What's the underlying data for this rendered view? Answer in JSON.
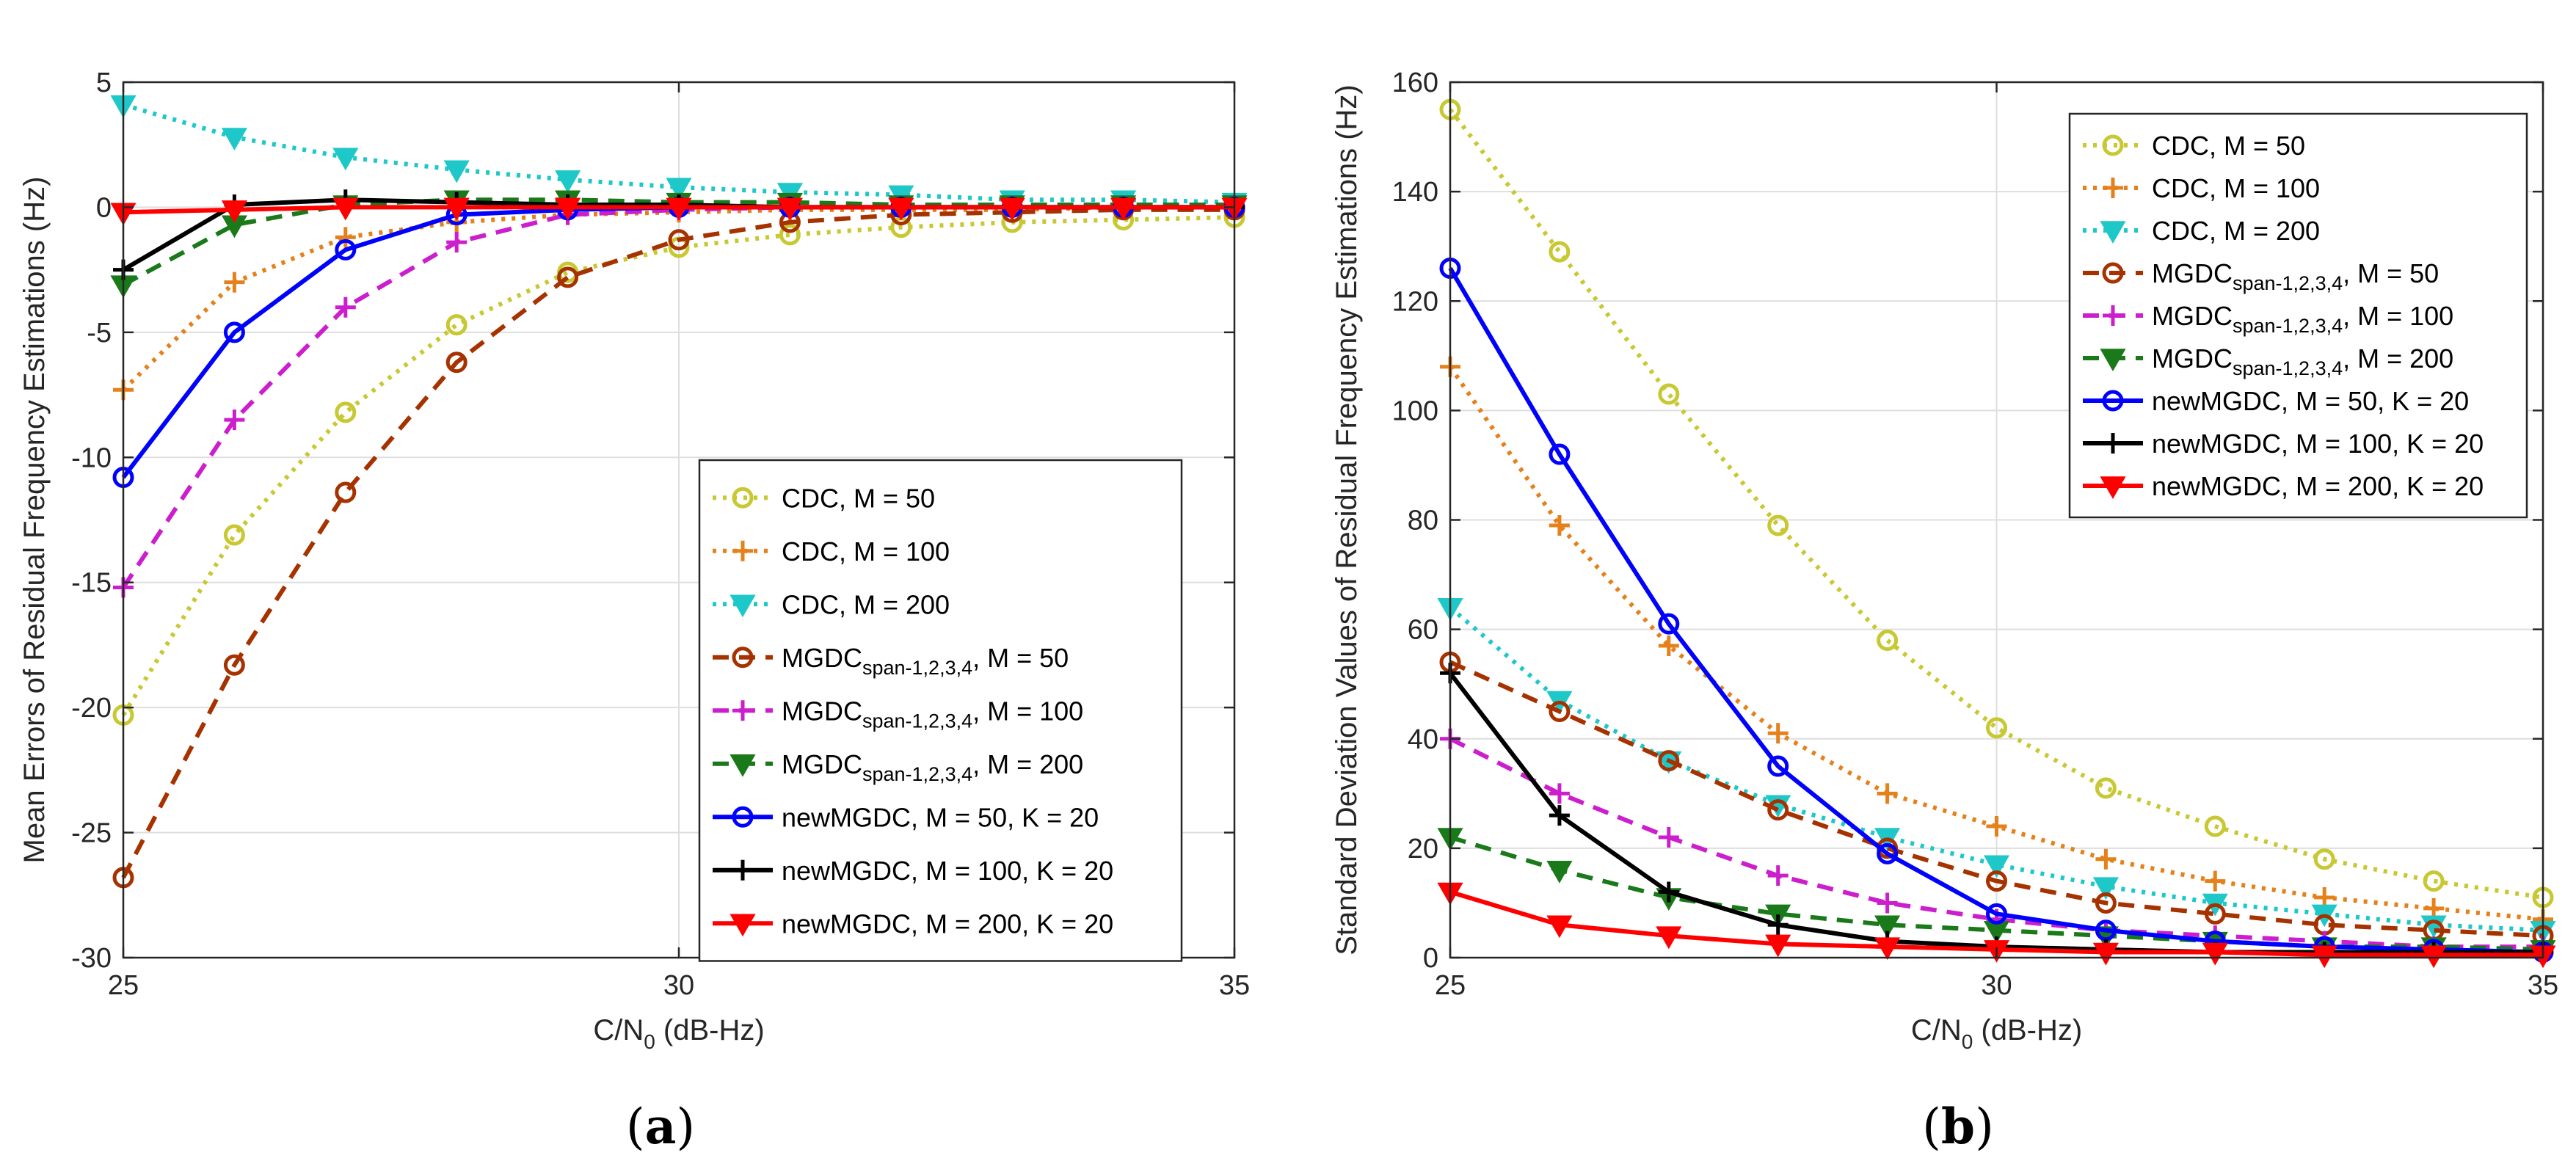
{
  "chart_data": [
    {
      "type": "line",
      "panel_label": "(a)",
      "panel_letter": "a",
      "xlabel": "C/N",
      "xlabel_sub": "0",
      "xlabel_unit": " (dB-Hz)",
      "ylabel": "Mean Errors of Residual Frequency Estimations (Hz)",
      "xlim": [
        25,
        35
      ],
      "ylim": [
        -30,
        5
      ],
      "xticks": [
        25,
        30,
        35
      ],
      "yticks": [
        -30,
        -25,
        -20,
        -15,
        -10,
        -5,
        0,
        5
      ],
      "grid": true,
      "legend_position": "lower-right",
      "x": [
        25,
        26,
        27,
        28,
        29,
        30,
        31,
        32,
        33,
        34,
        35
      ],
      "series": [
        {
          "name": "CDC, M = 50",
          "label_main": "CDC, M = 50",
          "color": "#c8c832",
          "dash": "dot",
          "marker": "circle",
          "values": [
            -20.3,
            -13.1,
            -8.2,
            -4.7,
            -2.6,
            -1.6,
            -1.1,
            -0.8,
            -0.6,
            -0.5,
            -0.4
          ]
        },
        {
          "name": "CDC, M = 100",
          "label_main": "CDC, M = 100",
          "color": "#e5801a",
          "dash": "dot",
          "marker": "plus",
          "values": [
            -7.3,
            -3.0,
            -1.2,
            -0.6,
            -0.3,
            -0.2,
            -0.1,
            -0.1,
            -0.1,
            0.0,
            0.0
          ]
        },
        {
          "name": "CDC, M = 200",
          "label_main": "CDC, M = 200",
          "color": "#1ec8c8",
          "dash": "dot",
          "marker": "triangle-down",
          "values": [
            4.1,
            2.8,
            2.0,
            1.5,
            1.1,
            0.8,
            0.6,
            0.5,
            0.3,
            0.3,
            0.2
          ]
        },
        {
          "name": "MGDC span-1,2,3,4, M = 50",
          "label_main": "MGDC",
          "label_sub": "span-1,2,3,4",
          "label_tail": ", M = 50",
          "color": "#a63200",
          "dash": "dash",
          "marker": "circle",
          "values": [
            -26.8,
            -18.3,
            -11.4,
            -6.2,
            -2.8,
            -1.3,
            -0.6,
            -0.3,
            -0.2,
            -0.1,
            -0.1
          ]
        },
        {
          "name": "MGDC span-1,2,3,4, M = 100",
          "label_main": "MGDC",
          "label_sub": "span-1,2,3,4",
          "label_tail": ", M = 100",
          "color": "#cc1ecc",
          "dash": "dash",
          "marker": "plus",
          "values": [
            -15.2,
            -8.5,
            -4.0,
            -1.4,
            -0.3,
            -0.1,
            0.0,
            0.0,
            0.0,
            0.0,
            0.0
          ]
        },
        {
          "name": "MGDC span-1,2,3,4, M = 200",
          "label_main": "MGDC",
          "label_sub": "span-1,2,3,4",
          "label_tail": ", M = 200",
          "color": "#1a7a1a",
          "dash": "dash",
          "marker": "triangle-down",
          "values": [
            -3.1,
            -0.7,
            0.1,
            0.3,
            0.3,
            0.2,
            0.2,
            0.1,
            0.1,
            0.1,
            0.1
          ]
        },
        {
          "name": "newMGDC, M = 50, K = 20",
          "label_main": "newMGDC, M = 50, K = 20",
          "color": "#0000ff",
          "dash": "solid",
          "marker": "circle",
          "values": [
            -10.8,
            -5.0,
            -1.7,
            -0.3,
            -0.1,
            0.0,
            0.0,
            0.0,
            0.0,
            0.0,
            0.0
          ]
        },
        {
          "name": "newMGDC, M = 100, K = 20",
          "label_main": "newMGDC, M = 100, K = 20",
          "color": "#000000",
          "dash": "solid",
          "marker": "plus",
          "values": [
            -2.5,
            0.1,
            0.3,
            0.2,
            0.1,
            0.1,
            0.0,
            0.0,
            0.0,
            0.0,
            0.0
          ]
        },
        {
          "name": "newMGDC, M = 200, K = 20",
          "label_main": "newMGDC, M = 200, K = 20",
          "color": "#ff0000",
          "dash": "solid",
          "marker": "triangle-down",
          "values": [
            -0.2,
            -0.1,
            0.0,
            0.0,
            0.0,
            0.0,
            0.0,
            0.0,
            0.0,
            0.0,
            0.0
          ]
        }
      ]
    },
    {
      "type": "line",
      "panel_label": "(b)",
      "panel_letter": "b",
      "xlabel": "C/N",
      "xlabel_sub": "0",
      "xlabel_unit": " (dB-Hz)",
      "ylabel": "Standard Deviation Values of Residual Frequency Estimations (Hz)",
      "xlim": [
        25,
        35
      ],
      "ylim": [
        0,
        160
      ],
      "xticks": [
        25,
        30,
        35
      ],
      "yticks": [
        0,
        20,
        40,
        60,
        80,
        100,
        120,
        140,
        160
      ],
      "grid": true,
      "legend_position": "top-right",
      "x": [
        25,
        26,
        27,
        28,
        29,
        30,
        31,
        32,
        33,
        34,
        35
      ],
      "series": [
        {
          "name": "CDC, M = 50",
          "label_main": "CDC, M = 50",
          "color": "#c8c832",
          "dash": "dot",
          "marker": "circle",
          "values": [
            155,
            129,
            103,
            79,
            58,
            42,
            31,
            24,
            18,
            14,
            11
          ]
        },
        {
          "name": "CDC, M = 100",
          "label_main": "CDC, M = 100",
          "color": "#e5801a",
          "dash": "dot",
          "marker": "plus",
          "values": [
            108,
            79,
            57,
            41,
            30,
            24,
            18,
            14,
            11,
            9,
            7
          ]
        },
        {
          "name": "CDC, M = 200",
          "label_main": "CDC, M = 200",
          "color": "#1ec8c8",
          "dash": "dot",
          "marker": "triangle-down",
          "values": [
            64,
            47,
            36,
            28,
            22,
            17,
            13,
            10,
            8,
            6,
            5
          ]
        },
        {
          "name": "MGDC span-1,2,3,4, M = 50",
          "label_main": "MGDC",
          "label_sub": "span-1,2,3,4",
          "label_tail": ", M = 50",
          "color": "#a63200",
          "dash": "dash",
          "marker": "circle",
          "values": [
            54,
            45,
            36,
            27,
            20,
            14,
            10,
            8,
            6,
            5,
            4
          ]
        },
        {
          "name": "MGDC span-1,2,3,4, M = 100",
          "label_main": "MGDC",
          "label_sub": "span-1,2,3,4",
          "label_tail": ", M = 100",
          "color": "#cc1ecc",
          "dash": "dash",
          "marker": "plus",
          "values": [
            40,
            30,
            22,
            15,
            10,
            7,
            5,
            4,
            3,
            2,
            2
          ]
        },
        {
          "name": "MGDC span-1,2,3,4, M = 200",
          "label_main": "MGDC",
          "label_sub": "span-1,2,3,4",
          "label_tail": ", M = 200",
          "color": "#1a7a1a",
          "dash": "dash",
          "marker": "triangle-down",
          "values": [
            22,
            16,
            11,
            8,
            6,
            5,
            4,
            3,
            2,
            2,
            1.5
          ]
        },
        {
          "name": "newMGDC, M = 50, K = 20",
          "label_main": "newMGDC, M = 50, K = 20",
          "color": "#0000ff",
          "dash": "solid",
          "marker": "circle",
          "values": [
            126,
            92,
            61,
            35,
            19,
            8,
            5,
            3,
            2,
            1.5,
            1
          ]
        },
        {
          "name": "newMGDC, M = 100, K = 20",
          "label_main": "newMGDC, M = 100, K = 20",
          "color": "#000000",
          "dash": "solid",
          "marker": "plus",
          "values": [
            52,
            26,
            12,
            6,
            3,
            2,
            1.5,
            1,
            1,
            1,
            1
          ]
        },
        {
          "name": "newMGDC, M = 200, K = 20",
          "label_main": "newMGDC, M = 200, K = 20",
          "color": "#ff0000",
          "dash": "solid",
          "marker": "triangle-down",
          "values": [
            12,
            6,
            4,
            2.5,
            2,
            1.5,
            1,
            1,
            0.5,
            0.5,
            0.5
          ]
        }
      ]
    }
  ]
}
